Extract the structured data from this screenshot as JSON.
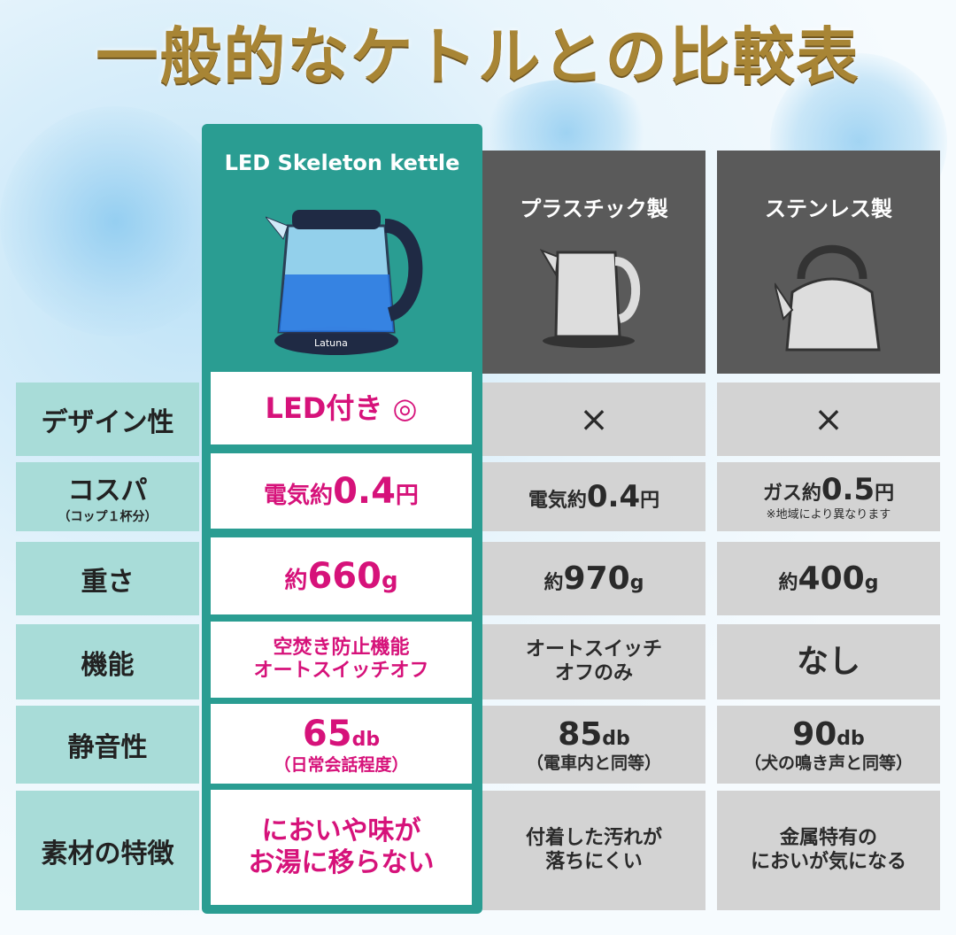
{
  "title": "一般的なケトルとの比較表",
  "columns": [
    {
      "label": "LED Skeleton kettle",
      "brand_on_image": "Latuna",
      "accent": "#2a9d92"
    },
    {
      "label": "プラスチック製"
    },
    {
      "label": "ステンレス製"
    }
  ],
  "rows": [
    {
      "label": "デザイン性",
      "sub": "",
      "cells": [
        {
          "main": "LED付き ◎"
        },
        {
          "main": "×"
        },
        {
          "main": "×"
        }
      ]
    },
    {
      "label": "コスパ",
      "sub": "（コップ１杯分）",
      "cells": [
        {
          "pre": "電気約",
          "main": "0.4",
          "post": "円"
        },
        {
          "pre": "電気約",
          "main": "0.4",
          "post": "円"
        },
        {
          "pre": "ガス約",
          "main": "0.5",
          "post": "円",
          "note": "※地域により異なります"
        }
      ]
    },
    {
      "label": "重さ",
      "sub": "",
      "cells": [
        {
          "pre": "約",
          "main": "660",
          "post": "g"
        },
        {
          "pre": "約",
          "main": "970",
          "post": "g"
        },
        {
          "pre": "約",
          "main": "400",
          "post": "g"
        }
      ]
    },
    {
      "label": "機能",
      "sub": "",
      "cells": [
        {
          "line1": "空焚き防止機能",
          "line2": "オートスイッチオフ"
        },
        {
          "line1": "オートスイッチ",
          "line2": "オフのみ"
        },
        {
          "line1": "なし",
          "line2": ""
        }
      ]
    },
    {
      "label": "静音性",
      "sub": "",
      "cells": [
        {
          "main": "65",
          "post": "db",
          "note": "（日常会話程度）"
        },
        {
          "main": "85",
          "post": "db",
          "note": "（電車内と同等）"
        },
        {
          "main": "90",
          "post": "db",
          "note": "（犬の鳴き声と同等）"
        }
      ]
    },
    {
      "label": "素材の特徴",
      "sub": "",
      "cells": [
        {
          "line1": "においや味が",
          "line2": "お湯に移らない"
        },
        {
          "line1": "付着した汚れが",
          "line2": "落ちにくい"
        },
        {
          "line1": "金属特有の",
          "line2": "においが気になる"
        }
      ]
    }
  ],
  "colors": {
    "highlight_text": "#d6127a",
    "gray_header": "#5a5a5a",
    "label_bg": "#a8dcd8",
    "gray_cell": "#d3d3d3",
    "title_gold": "#a88535"
  }
}
